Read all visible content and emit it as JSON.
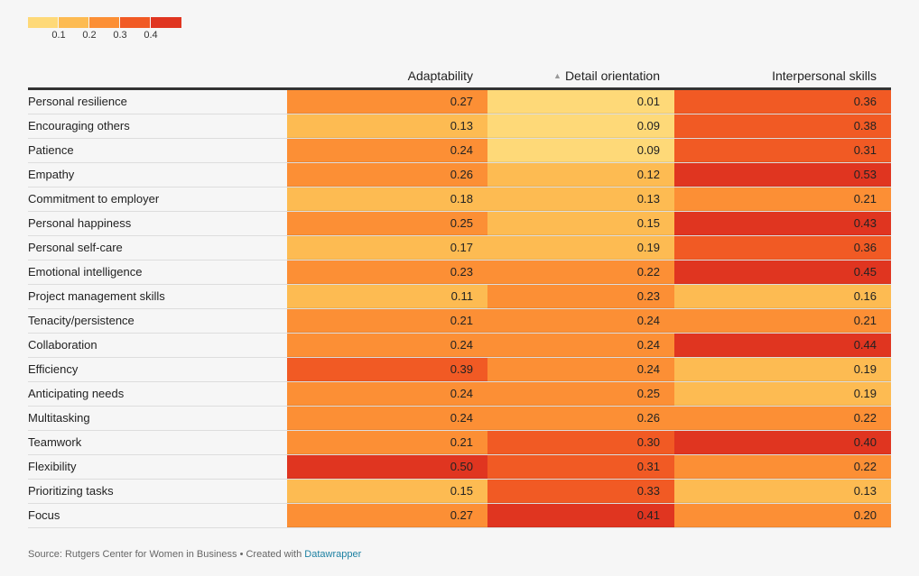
{
  "legend": {
    "colors": [
      "#fed978",
      "#fdbb52",
      "#fc8f35",
      "#f15a24",
      "#e03520"
    ],
    "ticks": [
      "0.1",
      "0.2",
      "0.3",
      "0.4"
    ]
  },
  "chart_data": {
    "type": "table",
    "title": "",
    "columns": [
      "Adaptability",
      "Detail orientation",
      "Interpersonal skills"
    ],
    "sorted_column": "Detail orientation",
    "sort_order": "ascending",
    "color_scale": {
      "breaks": [
        0.1,
        0.2,
        0.3,
        0.4
      ],
      "colors": [
        "#fed978",
        "#fdbb52",
        "#fc8f35",
        "#f15a24",
        "#e03520"
      ]
    },
    "rows": [
      {
        "label": "Personal resilience",
        "values": [
          "0.27",
          "0.01",
          "0.36"
        ]
      },
      {
        "label": "Encouraging others",
        "values": [
          "0.13",
          "0.09",
          "0.38"
        ]
      },
      {
        "label": "Patience",
        "values": [
          "0.24",
          "0.09",
          "0.31"
        ]
      },
      {
        "label": "Empathy",
        "values": [
          "0.26",
          "0.12",
          "0.53"
        ]
      },
      {
        "label": "Commitment to employer",
        "values": [
          "0.18",
          "0.13",
          "0.21"
        ]
      },
      {
        "label": "Personal happiness",
        "values": [
          "0.25",
          "0.15",
          "0.43"
        ]
      },
      {
        "label": "Personal self-care",
        "values": [
          "0.17",
          "0.19",
          "0.36"
        ]
      },
      {
        "label": "Emotional intelligence",
        "values": [
          "0.23",
          "0.22",
          "0.45"
        ]
      },
      {
        "label": "Project management skills",
        "values": [
          "0.11",
          "0.23",
          "0.16"
        ]
      },
      {
        "label": "Tenacity/persistence",
        "values": [
          "0.21",
          "0.24",
          "0.21"
        ]
      },
      {
        "label": "Collaboration",
        "values": [
          "0.24",
          "0.24",
          "0.44"
        ]
      },
      {
        "label": "Efficiency",
        "values": [
          "0.39",
          "0.24",
          "0.19"
        ]
      },
      {
        "label": "Anticipating needs",
        "values": [
          "0.24",
          "0.25",
          "0.19"
        ]
      },
      {
        "label": "Multitasking",
        "values": [
          "0.24",
          "0.26",
          "0.22"
        ]
      },
      {
        "label": "Teamwork",
        "values": [
          "0.21",
          "0.30",
          "0.40"
        ]
      },
      {
        "label": "Flexibility",
        "values": [
          "0.50",
          "0.31",
          "0.22"
        ]
      },
      {
        "label": "Prioritizing tasks",
        "values": [
          "0.15",
          "0.33",
          "0.13"
        ]
      },
      {
        "label": "Focus",
        "values": [
          "0.27",
          "0.41",
          "0.20"
        ]
      }
    ]
  },
  "footer": {
    "source": "Source: Rutgers Center for Women in Business • Created with ",
    "link": "Datawrapper"
  }
}
